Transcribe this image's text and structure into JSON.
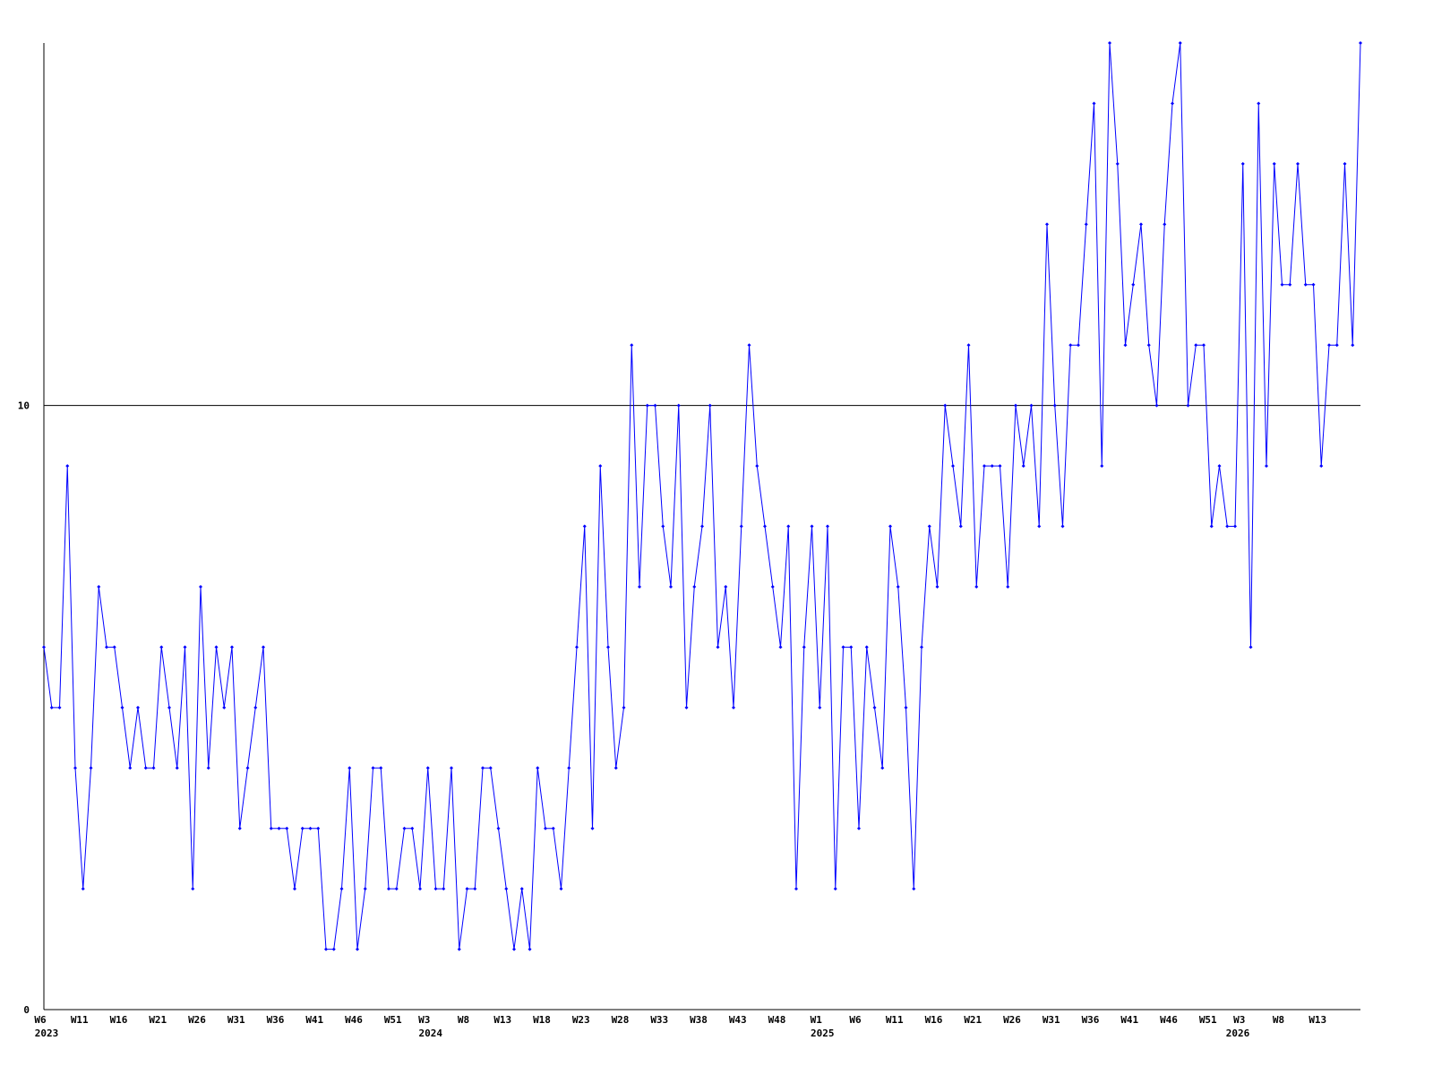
{
  "chart_data": {
    "type": "line",
    "categories": [
      "W6",
      null,
      null,
      null,
      null,
      "W11",
      null,
      null,
      null,
      null,
      "W16",
      null,
      null,
      null,
      null,
      "W21",
      null,
      null,
      null,
      null,
      "W26",
      null,
      null,
      null,
      null,
      "W31",
      null,
      null,
      null,
      null,
      "W36",
      null,
      null,
      null,
      null,
      "W41",
      null,
      null,
      null,
      null,
      "W46",
      null,
      null,
      null,
      null,
      "W51",
      null,
      null,
      null,
      "W3",
      null,
      null,
      null,
      null,
      "W8",
      null,
      null,
      null,
      null,
      "W13",
      null,
      null,
      null,
      null,
      "W18",
      null,
      null,
      null,
      null,
      "W23",
      null,
      null,
      null,
      null,
      "W28",
      null,
      null,
      null,
      null,
      "W33",
      null,
      null,
      null,
      null,
      "W38",
      null,
      null,
      null,
      null,
      "W43",
      null,
      null,
      null,
      null,
      "W48",
      null,
      null,
      null,
      null,
      "W1",
      null,
      null,
      null,
      null,
      "W6",
      null,
      null,
      null,
      null,
      "W11",
      null,
      null,
      null,
      null,
      "W16",
      null,
      null,
      null,
      null,
      "W21",
      null,
      null,
      null,
      null,
      "W26",
      null,
      null,
      null,
      null,
      "W31",
      null,
      null,
      null,
      null,
      "W36",
      null,
      null,
      null,
      null,
      "W41",
      null,
      null,
      null,
      null,
      "W46",
      null,
      null,
      null,
      null,
      "W51",
      null,
      null,
      null,
      "W3",
      null,
      null,
      null,
      null,
      "W8",
      null,
      null,
      null,
      null,
      "W13",
      null,
      null,
      null,
      null,
      null
    ],
    "category_years": [
      "2023",
      null,
      null,
      null,
      null,
      null,
      null,
      null,
      null,
      null,
      null,
      null,
      null,
      null,
      null,
      null,
      null,
      null,
      null,
      null,
      null,
      null,
      null,
      null,
      null,
      null,
      null,
      null,
      null,
      null,
      null,
      null,
      null,
      null,
      null,
      null,
      null,
      null,
      null,
      null,
      null,
      null,
      null,
      null,
      null,
      null,
      null,
      null,
      null,
      "2024",
      null,
      null,
      null,
      null,
      null,
      null,
      null,
      null,
      null,
      null,
      null,
      null,
      null,
      null,
      null,
      null,
      null,
      null,
      null,
      null,
      null,
      null,
      null,
      null,
      null,
      null,
      null,
      null,
      null,
      null,
      null,
      null,
      null,
      null,
      null,
      null,
      null,
      null,
      null,
      null,
      null,
      null,
      null,
      null,
      null,
      null,
      null,
      null,
      null,
      "2025",
      null,
      null,
      null,
      null,
      null,
      null,
      null,
      null,
      null,
      null,
      null,
      null,
      null,
      null,
      null,
      null,
      null,
      null,
      null,
      null,
      null,
      null,
      null,
      null,
      null,
      null,
      null,
      null,
      null,
      null,
      null,
      null,
      null,
      null,
      null,
      null,
      null,
      null,
      null,
      null,
      null,
      null,
      null,
      null,
      null,
      null,
      null,
      null,
      null,
      null,
      null,
      null,
      "2026",
      null,
      null,
      null,
      null,
      null,
      null,
      null,
      null,
      null,
      null,
      null,
      null,
      null,
      null,
      null
    ],
    "series": [
      {
        "color": "#0000ff",
        "values": [
          6,
          5,
          5,
          9,
          4,
          2,
          4,
          7,
          6,
          6,
          5,
          4,
          5,
          4,
          4,
          6,
          5,
          4,
          6,
          2,
          7,
          4,
          6,
          5,
          6,
          3,
          4,
          5,
          6,
          3,
          3,
          3,
          2,
          3,
          3,
          3,
          1,
          1,
          2,
          4,
          1,
          2,
          4,
          4,
          2,
          2,
          3,
          3,
          2,
          4,
          2,
          2,
          4,
          1,
          2,
          2,
          4,
          4,
          3,
          2,
          1,
          2,
          1,
          4,
          3,
          3,
          2,
          4,
          6,
          8,
          3,
          9,
          6,
          4,
          5,
          11,
          7,
          10,
          10,
          8,
          7,
          10,
          5,
          7,
          8,
          10,
          6,
          7,
          5,
          8,
          11,
          9,
          8,
          7,
          6,
          8,
          2,
          6,
          8,
          5,
          8,
          2,
          6,
          6,
          3,
          6,
          5,
          4,
          8,
          7,
          5,
          2,
          6,
          8,
          7,
          10,
          9,
          8,
          11,
          7,
          9,
          9,
          9,
          7,
          10,
          9,
          10,
          8,
          13,
          10,
          8,
          11,
          11,
          13,
          15,
          9,
          16,
          14,
          11,
          12,
          13,
          11,
          10,
          13,
          15,
          16,
          10,
          11,
          11,
          8,
          9,
          8,
          8,
          14,
          6,
          15,
          9,
          14,
          12,
          12,
          14,
          12,
          12,
          9,
          11,
          11,
          14,
          11,
          16
        ]
      }
    ],
    "ylim": [
      0,
      16
    ],
    "yticks": [
      0,
      10
    ],
    "grid": true
  }
}
